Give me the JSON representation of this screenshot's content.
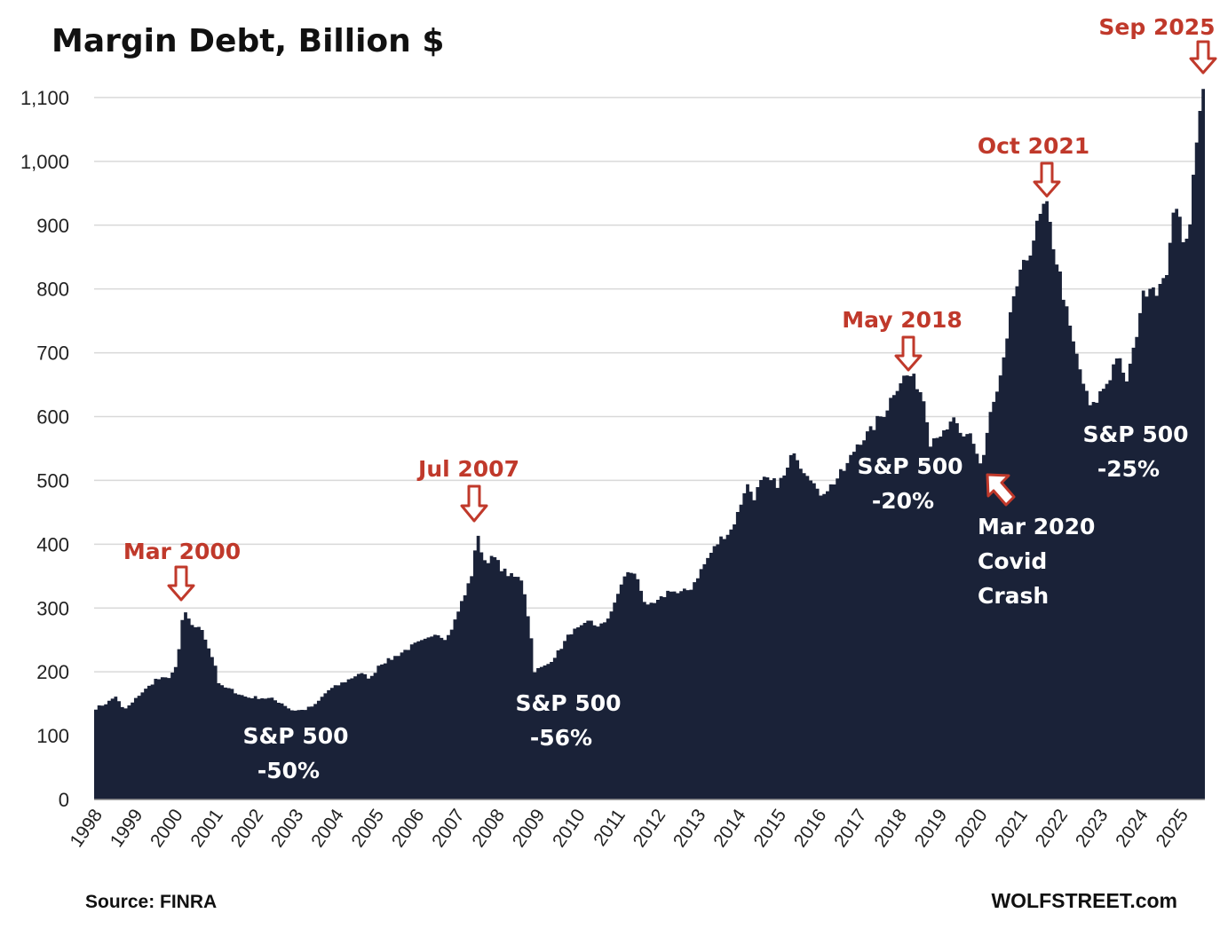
{
  "chart_data": {
    "type": "area",
    "title": "Margin Debt, Billion $",
    "xlabel": "",
    "ylabel": "",
    "ylim": [
      0,
      1150
    ],
    "yticks": [
      0,
      100,
      200,
      300,
      400,
      500,
      600,
      700,
      800,
      900,
      1000,
      1100
    ],
    "ytick_labels": [
      "0",
      "100",
      "200",
      "300",
      "400",
      "500",
      "600",
      "700",
      "800",
      "900",
      "1,000",
      "1,100"
    ],
    "xticks": [
      "1998",
      "1999",
      "2000",
      "2001",
      "2002",
      "2003",
      "2004",
      "2005",
      "2006",
      "2007",
      "2008",
      "2009",
      "2010",
      "2011",
      "2012",
      "2013",
      "2014",
      "2015",
      "2016",
      "2017",
      "2018",
      "2019",
      "2020",
      "2021",
      "2022",
      "2023",
      "2024",
      "2025"
    ],
    "xlim": [
      1998.0,
      2025.75
    ],
    "grid": true,
    "color": "#1a2238",
    "series": [
      {
        "points": [
          [
            1998.0,
            143
          ],
          [
            1998.3,
            152
          ],
          [
            1998.5,
            162
          ],
          [
            1998.7,
            140
          ],
          [
            1998.9,
            150
          ],
          [
            1999.1,
            165
          ],
          [
            1999.3,
            175
          ],
          [
            1999.5,
            188
          ],
          [
            1999.8,
            190
          ],
          [
            2000.0,
            205
          ],
          [
            2000.1,
            240
          ],
          [
            2000.2,
            300
          ],
          [
            2000.4,
            270
          ],
          [
            2000.6,
            272
          ],
          [
            2000.8,
            245
          ],
          [
            2001.0,
            210
          ],
          [
            2001.1,
            178
          ],
          [
            2001.4,
            172
          ],
          [
            2001.6,
            165
          ],
          [
            2001.8,
            160
          ],
          [
            2002.0,
            160
          ],
          [
            2002.4,
            158
          ],
          [
            2002.7,
            150
          ],
          [
            2002.9,
            140
          ],
          [
            2003.2,
            140
          ],
          [
            2003.5,
            148
          ],
          [
            2003.8,
            170
          ],
          [
            2004.1,
            180
          ],
          [
            2004.4,
            190
          ],
          [
            2004.6,
            198
          ],
          [
            2004.9,
            190
          ],
          [
            2005.1,
            212
          ],
          [
            2005.4,
            220
          ],
          [
            2005.7,
            232
          ],
          [
            2006.0,
            243
          ],
          [
            2006.3,
            250
          ],
          [
            2006.5,
            262
          ],
          [
            2006.8,
            252
          ],
          [
            2007.0,
            280
          ],
          [
            2007.2,
            315
          ],
          [
            2007.4,
            345
          ],
          [
            2007.55,
            415
          ],
          [
            2007.75,
            375
          ],
          [
            2008.0,
            378
          ],
          [
            2008.2,
            360
          ],
          [
            2008.4,
            350
          ],
          [
            2008.7,
            345
          ],
          [
            2008.9,
            262
          ],
          [
            2009.0,
            202
          ],
          [
            2009.3,
            210
          ],
          [
            2009.6,
            232
          ],
          [
            2009.9,
            262
          ],
          [
            2010.2,
            270
          ],
          [
            2010.4,
            282
          ],
          [
            2010.6,
            268
          ],
          [
            2010.8,
            282
          ],
          [
            2011.0,
            305
          ],
          [
            2011.2,
            345
          ],
          [
            2011.4,
            358
          ],
          [
            2011.6,
            345
          ],
          [
            2011.8,
            300
          ],
          [
            2012.1,
            310
          ],
          [
            2012.4,
            330
          ],
          [
            2012.6,
            322
          ],
          [
            2012.9,
            330
          ],
          [
            2013.1,
            352
          ],
          [
            2013.4,
            385
          ],
          [
            2013.7,
            412
          ],
          [
            2013.9,
            420
          ],
          [
            2014.1,
            450
          ],
          [
            2014.3,
            495
          ],
          [
            2014.5,
            475
          ],
          [
            2014.7,
            500
          ],
          [
            2014.9,
            498
          ],
          [
            2015.1,
            495
          ],
          [
            2015.3,
            510
          ],
          [
            2015.5,
            550
          ],
          [
            2015.7,
            520
          ],
          [
            2015.9,
            510
          ],
          [
            2016.1,
            478
          ],
          [
            2016.4,
            490
          ],
          [
            2016.6,
            505
          ],
          [
            2016.8,
            520
          ],
          [
            2017.1,
            560
          ],
          [
            2017.4,
            575
          ],
          [
            2017.6,
            595
          ],
          [
            2017.8,
            610
          ],
          [
            2018.0,
            640
          ],
          [
            2018.2,
            660
          ],
          [
            2018.4,
            665
          ],
          [
            2018.6,
            650
          ],
          [
            2018.8,
            620
          ],
          [
            2018.9,
            560
          ],
          [
            2019.1,
            575
          ],
          [
            2019.3,
            570
          ],
          [
            2019.5,
            600
          ],
          [
            2019.7,
            560
          ],
          [
            2019.9,
            575
          ],
          [
            2020.0,
            560
          ],
          [
            2020.2,
            520
          ],
          [
            2020.4,
            600
          ],
          [
            2020.6,
            640
          ],
          [
            2020.8,
            700
          ],
          [
            2021.0,
            790
          ],
          [
            2021.2,
            825
          ],
          [
            2021.4,
            860
          ],
          [
            2021.6,
            900
          ],
          [
            2021.8,
            936
          ],
          [
            2022.0,
            870
          ],
          [
            2022.2,
            810
          ],
          [
            2022.4,
            740
          ],
          [
            2022.6,
            690
          ],
          [
            2022.8,
            640
          ],
          [
            2022.95,
            610
          ],
          [
            2023.2,
            640
          ],
          [
            2023.4,
            660
          ],
          [
            2023.6,
            700
          ],
          [
            2023.8,
            650
          ],
          [
            2024.0,
            700
          ],
          [
            2024.2,
            780
          ],
          [
            2024.4,
            810
          ],
          [
            2024.6,
            800
          ],
          [
            2024.8,
            810
          ],
          [
            2024.95,
            900
          ],
          [
            2025.15,
            930
          ],
          [
            2025.3,
            860
          ],
          [
            2025.45,
            930
          ],
          [
            2025.55,
            1010
          ],
          [
            2025.65,
            1060
          ],
          [
            2025.75,
            1126
          ]
        ]
      }
    ],
    "annotations": {
      "peaks": [
        {
          "label": "Mar 2000",
          "x": 2000.2,
          "y": 300
        },
        {
          "label": "Jul 2007",
          "x": 2007.55,
          "y": 415
        },
        {
          "label": "May 2018",
          "x": 2018.4,
          "y": 665
        },
        {
          "label": "Oct 2021",
          "x": 2021.8,
          "y": 936
        },
        {
          "label": "Sep 2025",
          "x": 2025.75,
          "y": 1126
        }
      ],
      "drawdowns": [
        {
          "line1": "S&P 500",
          "line2": "-50%"
        },
        {
          "line1": "S&P 500",
          "line2": "-56%"
        },
        {
          "line1": "S&P 500",
          "line2": "-20%"
        },
        {
          "line1": "S&P 500",
          "line2": "-25%"
        }
      ],
      "covid": {
        "line1": "Mar 2020",
        "line2": "Covid",
        "line3": "Crash",
        "x": 2020.2,
        "y": 520
      }
    }
  },
  "footer": {
    "source": "Source: FINRA",
    "brand": "WOLFSTREET.com"
  }
}
